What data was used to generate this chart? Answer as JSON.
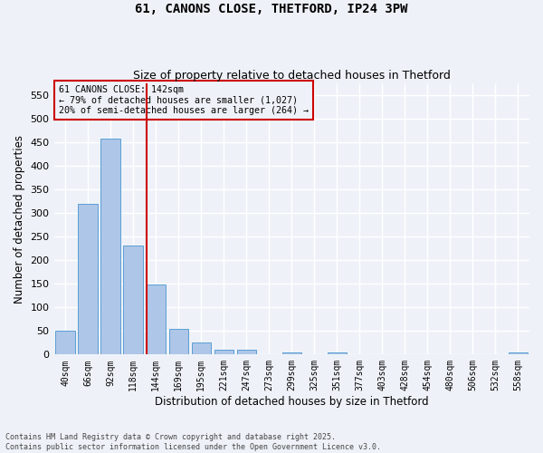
{
  "title1": "61, CANONS CLOSE, THETFORD, IP24 3PW",
  "title2": "Size of property relative to detached houses in Thetford",
  "xlabel": "Distribution of detached houses by size in Thetford",
  "ylabel": "Number of detached properties",
  "bin_labels": [
    "40sqm",
    "66sqm",
    "92sqm",
    "118sqm",
    "144sqm",
    "169sqm",
    "195sqm",
    "221sqm",
    "247sqm",
    "273sqm",
    "299sqm",
    "325sqm",
    "351sqm",
    "377sqm",
    "403sqm",
    "428sqm",
    "454sqm",
    "480sqm",
    "506sqm",
    "532sqm",
    "558sqm"
  ],
  "bar_values": [
    50,
    320,
    457,
    232,
    149,
    54,
    25,
    11,
    10,
    0,
    5,
    0,
    4,
    0,
    0,
    0,
    0,
    0,
    0,
    0,
    4
  ],
  "bar_color": "#aec6e8",
  "bar_edge_color": "#5a9fd4",
  "property_line_color": "#cc0000",
  "annotation_text": "61 CANONS CLOSE: 142sqm\n← 79% of detached houses are smaller (1,027)\n20% of semi-detached houses are larger (264) →",
  "annotation_box_color": "#cc0000",
  "ylim": [
    0,
    575
  ],
  "yticks": [
    0,
    50,
    100,
    150,
    200,
    250,
    300,
    350,
    400,
    450,
    500,
    550
  ],
  "footer_text": "Contains HM Land Registry data © Crown copyright and database right 2025.\nContains public sector information licensed under the Open Government Licence v3.0.",
  "background_color": "#eef2f8",
  "grid_color": "#ffffff"
}
